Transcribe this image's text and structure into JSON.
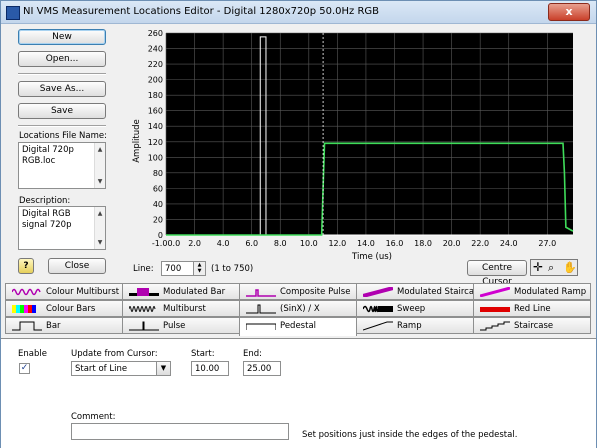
{
  "window": {
    "title": "NI VMS Measurement Locations Editor - Digital 1280x720p 50.0Hz RGB",
    "close_glyph": "x"
  },
  "left": {
    "new_label": "New",
    "open_label": "Open...",
    "save_as_label": "Save As...",
    "save_label": "Save",
    "file_name_label": "Locations File Name:",
    "file_name_value": "Digital 720p RGB.loc",
    "description_label": "Description:",
    "description_value": "Digital RGB signal 720p",
    "help_glyph": "?",
    "close_label": "Close"
  },
  "chart_data": {
    "type": "line",
    "ylabel": "Amplitude",
    "xlabel": "Time (us)",
    "xlim": [
      -1.0,
      27.5
    ],
    "ylim": [
      0,
      260
    ],
    "yticks": [
      "0",
      "20",
      "40",
      "60",
      "80",
      "100",
      "120",
      "140",
      "160",
      "180",
      "200",
      "220",
      "240",
      "260"
    ],
    "xticks": [
      "-1.00.0",
      "2.0",
      "4.0",
      "6.0",
      "8.0",
      "10.0",
      "12.0",
      "14.0",
      "16.0",
      "18.0",
      "20.0",
      "22.0",
      "24.0",
      "27.0"
    ],
    "grid": true,
    "series": [
      {
        "color": "#ffffff",
        "x": [
          -1.0,
          5.6,
          5.6,
          6.0,
          6.0,
          27.5
        ],
        "y": [
          0,
          0,
          255,
          255,
          0,
          0
        ]
      },
      {
        "color": "#3fdc5a",
        "x": [
          -1.0,
          9.9,
          10.0,
          10.1,
          26.8,
          26.9,
          27.0,
          27.5
        ],
        "y": [
          0,
          0,
          60,
          118,
          118,
          80,
          10,
          5
        ]
      }
    ],
    "cursor_x": 10.0
  },
  "line_control": {
    "label": "Line:",
    "value": "700",
    "range": "(1 to 750)"
  },
  "centre_cursor_label": "Centre Cursor",
  "tabs": [
    {
      "label": "Colour Multiburst"
    },
    {
      "label": "Modulated Bar"
    },
    {
      "label": "Composite Pulse"
    },
    {
      "label": "Modulated Staircase"
    },
    {
      "label": "Modulated Ramp"
    },
    {
      "label": "Colour Bars"
    },
    {
      "label": "Multiburst"
    },
    {
      "label": "(SinX) / X"
    },
    {
      "label": "Sweep"
    },
    {
      "label": "Red Line"
    },
    {
      "label": "Bar"
    },
    {
      "label": "Pulse"
    },
    {
      "label": "Pedestal"
    },
    {
      "label": "Ramp"
    },
    {
      "label": "Staircase"
    }
  ],
  "pedestal": {
    "enable_label": "Enable",
    "update_label": "Update from Cursor:",
    "update_value": "Start of Line",
    "start_label": "Start:",
    "start_value": "10.00",
    "end_label": "End:",
    "end_value": "25.00",
    "comment_label": "Comment:",
    "comment_value": "",
    "hint": "Set positions just inside the edges of the pedestal."
  },
  "colors": {
    "plot_bg": "#000000",
    "grid": "#5a5a5a",
    "active_tab_bg": "#ffffff"
  }
}
